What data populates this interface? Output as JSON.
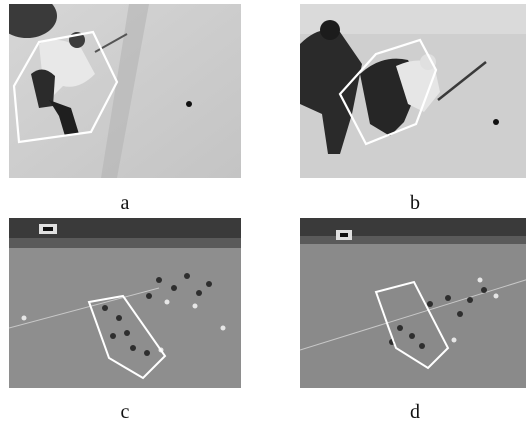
{
  "figure": {
    "panels": [
      {
        "id": "a",
        "caption": "a",
        "scene": "hockey-player-shooting-tracked"
      },
      {
        "id": "b",
        "caption": "b",
        "scene": "hockey-players-contesting-puck-tracked"
      },
      {
        "id": "c",
        "caption": "c",
        "scene": "football-pitch-group-tracked"
      },
      {
        "id": "d",
        "caption": "d",
        "scene": "football-pitch-group-tracked"
      }
    ],
    "tracking_outline_color": "#ffffff"
  }
}
